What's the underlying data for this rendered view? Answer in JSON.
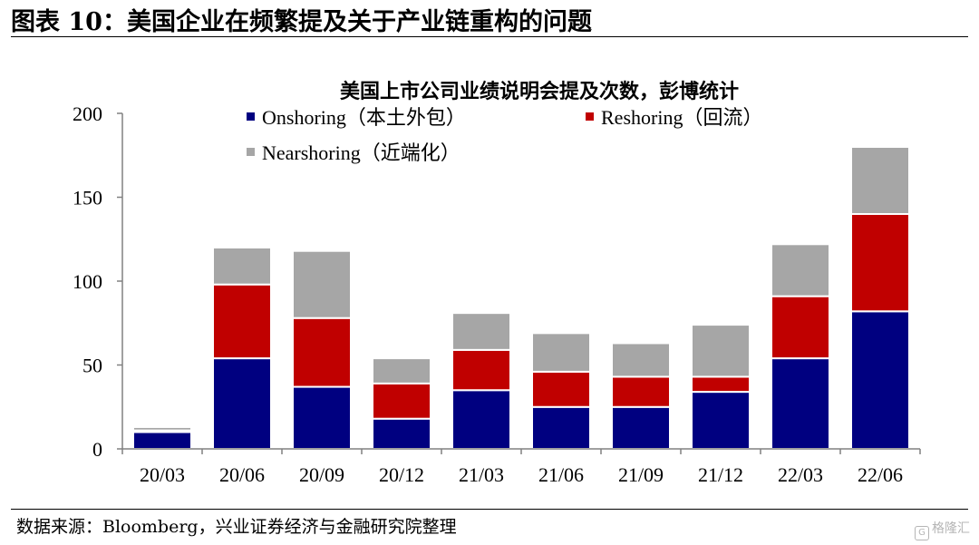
{
  "header": {
    "title": "图表 10：美国企业在频繁提及关于产业链重构的问题"
  },
  "footer": {
    "source": "数据来源：Bloomberg，兴业证券经济与金融研究院整理",
    "watermark_logo": "G",
    "watermark": "格隆汇"
  },
  "chart_data": {
    "type": "bar",
    "stacked": true,
    "title": "美国上市公司业绩说明会提及次数，彭博统计",
    "xlabel": "",
    "ylabel": "",
    "ylim": [
      0,
      200
    ],
    "yticks": [
      0,
      50,
      100,
      150,
      200
    ],
    "grid": false,
    "legend_position": "top",
    "categories": [
      "20/03",
      "20/06",
      "20/09",
      "20/12",
      "21/03",
      "21/06",
      "21/09",
      "21/12",
      "22/03",
      "22/06"
    ],
    "series": [
      {
        "name": "Onshoring（本土外包）",
        "color": "#000080",
        "values": [
          10,
          54,
          37,
          18,
          35,
          25,
          25,
          34,
          54,
          82
        ]
      },
      {
        "name": "Reshoring（回流）",
        "color": "#c00000",
        "values": [
          1,
          44,
          41,
          21,
          24,
          21,
          18,
          9,
          37,
          58
        ]
      },
      {
        "name": "Nearshoring（近端化）",
        "color": "#a6a6a6",
        "values": [
          2,
          22,
          40,
          15,
          22,
          23,
          20,
          31,
          31,
          40
        ]
      }
    ]
  }
}
